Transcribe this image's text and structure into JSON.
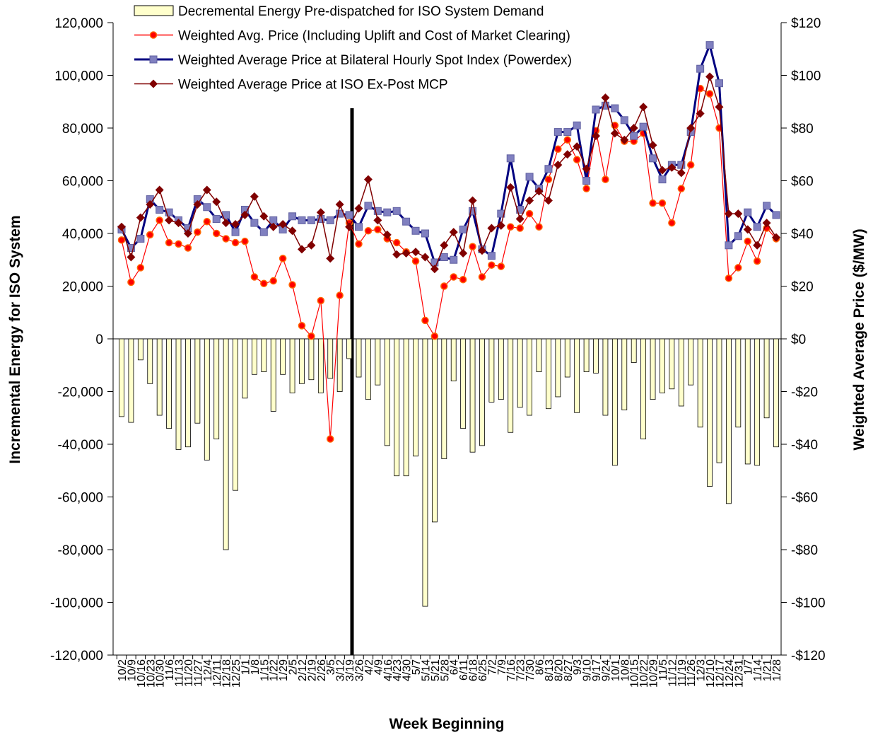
{
  "chart_data": {
    "type": "bar",
    "categories": [
      "10/2",
      "10/9",
      "10/16",
      "10/23",
      "10/30",
      "11/6",
      "11/13",
      "11/20",
      "11/27",
      "12/4",
      "12/11",
      "12/18",
      "12/25",
      "1/1",
      "1/8",
      "1/15",
      "1/22",
      "1/29",
      "2/5",
      "2/12",
      "2/19",
      "2/26",
      "3/5",
      "3/12",
      "3/19",
      "3/26",
      "4/2",
      "4/9",
      "4/16",
      "4/23",
      "4/30",
      "5/7",
      "5/14",
      "5/21",
      "5/28",
      "6/4",
      "6/11",
      "6/18",
      "6/25",
      "7/2",
      "7/9",
      "7/16",
      "7/23",
      "7/30",
      "8/6",
      "8/13",
      "8/20",
      "8/27",
      "9/3",
      "9/10",
      "9/17",
      "9/24",
      "10/1",
      "10/8",
      "10/15",
      "10/22",
      "10/29",
      "11/5",
      "11/12",
      "11/19",
      "11/26",
      "12/3",
      "12/10",
      "12/17",
      "12/24",
      "12/31",
      "1/7",
      "1/14",
      "1/21",
      "1/28"
    ],
    "series": [
      {
        "name": "Decremental Energy Pre-dispatched for ISO System Demand",
        "type": "bar",
        "color": "#ffffcc",
        "values": [
          -29500,
          -31700,
          -8000,
          -17000,
          -29000,
          -34000,
          -42000,
          -41000,
          -32000,
          -46000,
          -38000,
          -80000,
          -57500,
          -22500,
          -13500,
          -12500,
          -27500,
          -13500,
          -20500,
          -17000,
          -15500,
          -20500,
          -15000,
          -20000,
          -7500,
          -14500,
          -23000,
          -17500,
          -40500,
          -52000,
          -52000,
          -44500,
          -101500,
          -69500,
          -45500,
          -16000,
          -34000,
          -43000,
          -40500,
          -24000,
          -23000,
          -35500,
          -26000,
          -29000,
          -12500,
          -26500,
          -22000,
          -14500,
          -28000,
          -12500,
          -13000,
          -29000,
          -48000,
          -27000,
          -9000,
          -38000,
          -23000,
          -20500,
          -19000,
          -25500,
          -17500,
          -33500,
          -56000,
          -47000,
          -62500,
          -33500,
          -47500,
          -48000,
          -30000,
          -41000
        ]
      },
      {
        "name": "Weighted Avg. Price (Including Uplift and Cost of Market Clearing)",
        "type": "line",
        "axis": "y2",
        "color": "#ff0000",
        "marker": "circle",
        "values": [
          37.5,
          21.5,
          27,
          39.5,
          45,
          36.5,
          36,
          34.5,
          40.5,
          44.5,
          40,
          38,
          36.5,
          37,
          23.5,
          21,
          22,
          30.5,
          20.5,
          5,
          1,
          14.5,
          -38,
          16.5,
          44,
          36,
          41,
          41.5,
          38,
          36.5,
          33,
          29.5,
          7,
          1,
          20,
          23.5,
          22.5,
          35,
          23.5,
          28,
          27.5,
          42.5,
          42,
          47.5,
          42.5,
          60.5,
          72,
          75.5,
          68,
          57,
          79,
          60.5,
          81,
          75,
          75,
          78,
          51.5,
          51.5,
          44,
          57,
          66,
          95,
          93,
          80,
          23,
          27,
          37,
          29.5,
          42,
          38
        ]
      },
      {
        "name": "Weighted Average Price at Bilateral Hourly Spot Index (Powerdex)",
        "type": "line",
        "axis": "y2",
        "color": "#000080",
        "marker": "square",
        "values": [
          41.5,
          34.5,
          38,
          53,
          49,
          48,
          45,
          42,
          53,
          50,
          45.5,
          47,
          40.5,
          49,
          44,
          40.5,
          45,
          41.5,
          46.5,
          45,
          45,
          45.5,
          45,
          47.5,
          47,
          42.5,
          50.5,
          48.5,
          48,
          48.5,
          44.5,
          41,
          40,
          29,
          31,
          30,
          41.5,
          48.5,
          34,
          31.5,
          47.5,
          68.5,
          49,
          61.5,
          57,
          64.5,
          78.5,
          78.5,
          81,
          60,
          87,
          88.5,
          87.5,
          83,
          77,
          80.5,
          68.5,
          60.5,
          66,
          66,
          78.5,
          102.5,
          111.5,
          97,
          35.5,
          39,
          48,
          42.5,
          50.5,
          47
        ]
      },
      {
        "name": "Weighted Average Price at ISO Ex-Post MCP",
        "type": "line",
        "axis": "y2",
        "color": "#800000",
        "marker": "diamond",
        "values": [
          42.5,
          31,
          46,
          51,
          56.5,
          45,
          44,
          40,
          51,
          56.5,
          52,
          44,
          43.5,
          47,
          54,
          46.5,
          42.5,
          43.5,
          41,
          34,
          35.5,
          48,
          30.5,
          51,
          42.5,
          49.5,
          60.5,
          45,
          39.5,
          32,
          32.5,
          33,
          31,
          26.5,
          35.5,
          40.5,
          32.5,
          52.5,
          33.5,
          42,
          43,
          57.5,
          45.5,
          52.5,
          56,
          52.5,
          66,
          70,
          73,
          64.5,
          77,
          91.5,
          78,
          75.5,
          80,
          88,
          73.5,
          64,
          65,
          63,
          80,
          85.5,
          99.5,
          88,
          47.5,
          47.5,
          41.5,
          35.5,
          44,
          38.5
        ]
      }
    ],
    "x_label": "Week Beginning",
    "y_label": "Incremental Energy for ISO System",
    "y2_label": "Weighted Average Price ($/MW)",
    "ylim": [
      -120000,
      120000
    ],
    "yticks": [
      {
        "value": -120000,
        "label": "-120,000"
      },
      {
        "value": -100000,
        "label": "-100,000"
      },
      {
        "value": -80000,
        "label": "-80,000"
      },
      {
        "value": -60000,
        "label": "-60,000"
      },
      {
        "value": -40000,
        "label": "-40,000"
      },
      {
        "value": -20000,
        "label": "-20,000"
      },
      0,
      {
        "value": 20000,
        "label": "20,000"
      },
      {
        "value": 40000,
        "label": "40,000"
      },
      {
        "value": 60000,
        "label": "60,000"
      },
      {
        "value": 80000,
        "label": "80,000"
      },
      {
        "value": 100000,
        "label": "100,000"
      },
      {
        "value": 120000,
        "label": "120,000"
      }
    ],
    "y2lim": [
      -120,
      120
    ],
    "y2ticks": [
      {
        "value": -120,
        "label": "-$120"
      },
      {
        "value": -100,
        "label": "-$100"
      },
      {
        "value": -80,
        "label": "-$80"
      },
      {
        "value": -60,
        "label": "-$60"
      },
      {
        "value": -40,
        "label": "-$40"
      },
      {
        "value": -20,
        "label": "-$20"
      },
      {
        "value": 0,
        "label": "$0"
      },
      {
        "value": 20,
        "label": "$20"
      },
      {
        "value": 40,
        "label": "$40"
      },
      {
        "value": 60,
        "label": "$60"
      },
      {
        "value": 80,
        "label": "$80"
      },
      {
        "value": 100,
        "label": "$100"
      },
      {
        "value": 120,
        "label": "$120"
      }
    ],
    "grid": false,
    "legend": "top"
  }
}
